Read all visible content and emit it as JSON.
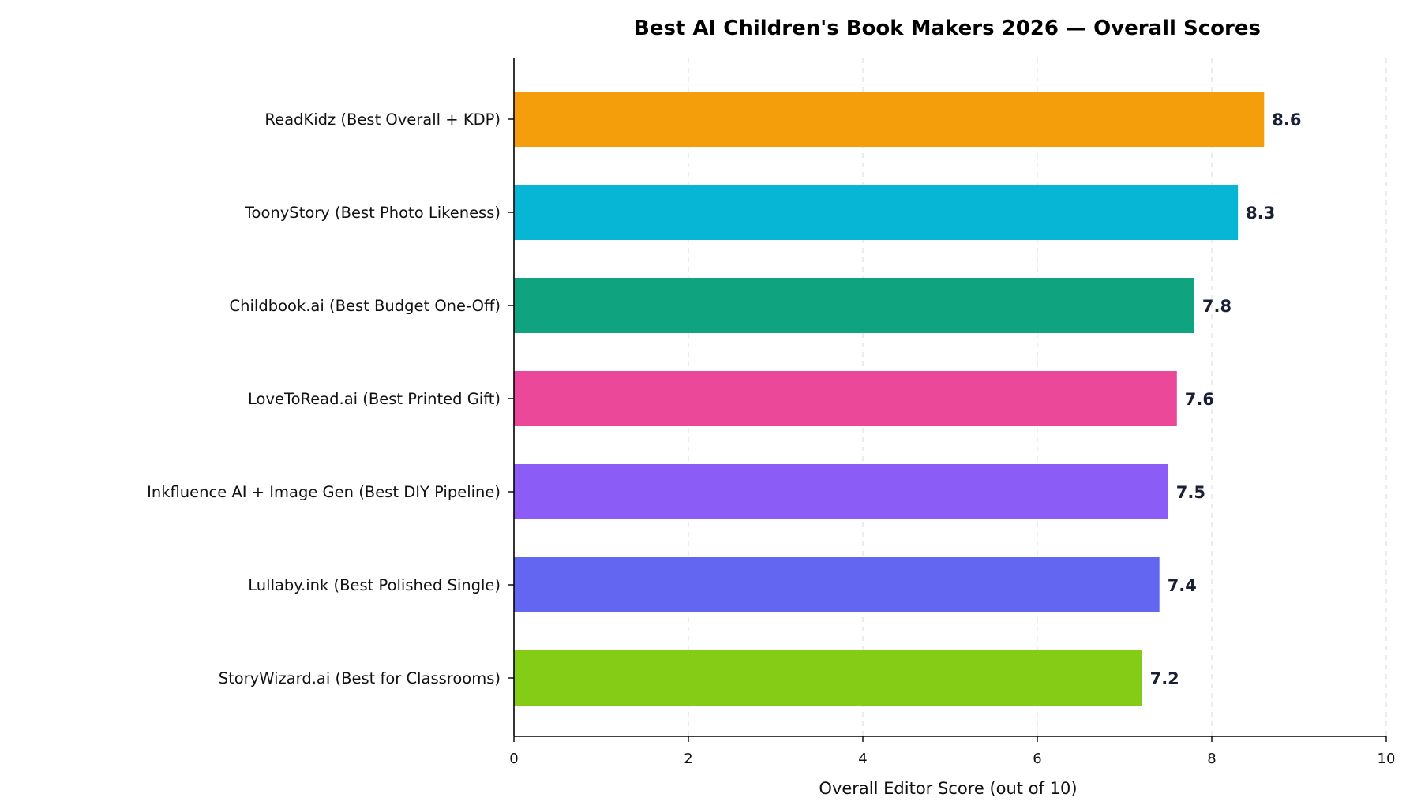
{
  "chart_data": {
    "type": "bar",
    "orientation": "horizontal",
    "title": "Best AI Children's Book Makers 2026 — Overall Scores",
    "xlabel": "Overall Editor Score (out of 10)",
    "ylabel": "",
    "xlim": [
      0,
      10
    ],
    "xticks": [
      "0",
      "2",
      "4",
      "6",
      "8",
      "10"
    ],
    "grid": "vertical-dashed",
    "categories": [
      "ReadKidz  (Best Overall + KDP)",
      "ToonyStory  (Best Photo Likeness)",
      "Childbook.ai  (Best Budget One-Off)",
      "LoveToRead.ai  (Best Printed Gift)",
      "Inkfluence AI + Image Gen  (Best DIY Pipeline)",
      "Lullaby.ink  (Best Polished Single)",
      "StoryWizard.ai  (Best for Classrooms)"
    ],
    "values": [
      8.6,
      8.3,
      7.8,
      7.6,
      7.5,
      7.4,
      7.2
    ],
    "value_labels": [
      "8.6",
      "8.3",
      "7.8",
      "7.6",
      "7.5",
      "7.4",
      "7.2"
    ],
    "colors": [
      "#f59e0b",
      "#06b6d4",
      "#10a37f",
      "#ec4899",
      "#8b5cf6",
      "#6366f1",
      "#84cc16"
    ]
  }
}
